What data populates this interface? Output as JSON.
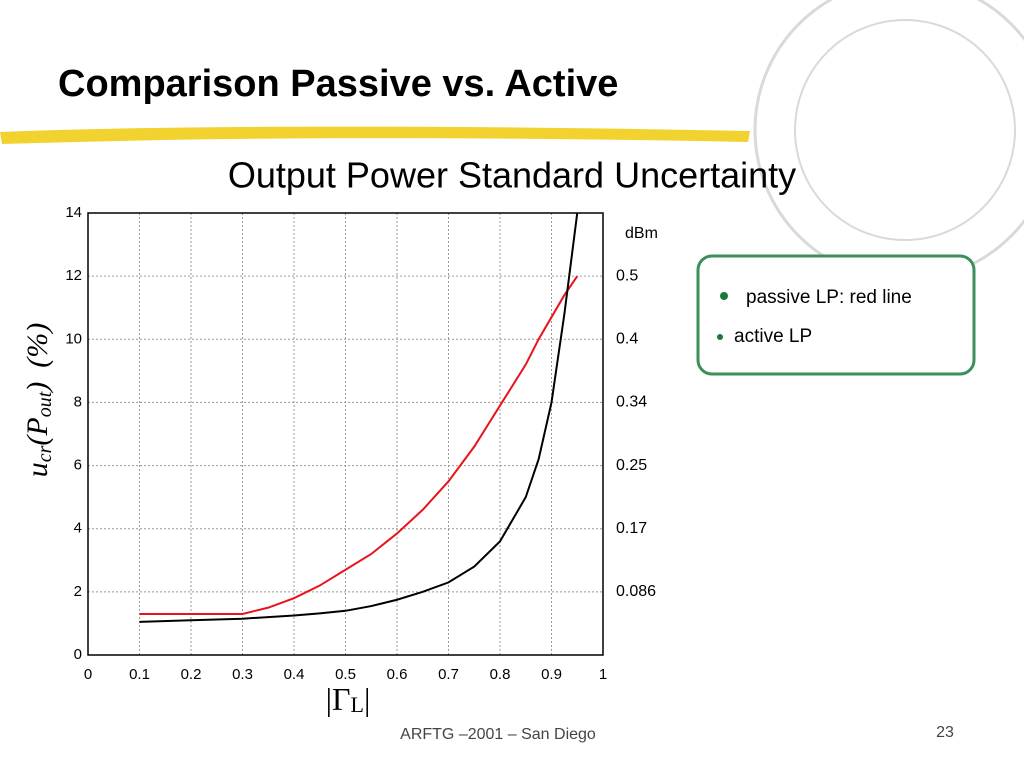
{
  "slide": {
    "title": "Comparison Passive vs. Active",
    "subtitle": "Output Power Standard Uncertainty",
    "footer": "ARFTG –2001 – San Diego",
    "page": "23"
  },
  "chart_data": {
    "type": "line",
    "ylabel": [
      "u",
      "cr",
      "(P",
      "out",
      ")",
      "(%)"
    ],
    "xlabel": [
      "|Γ",
      "L",
      "|"
    ],
    "x": [
      0.1,
      0.2,
      0.3,
      0.35,
      0.4,
      0.45,
      0.5,
      0.55,
      0.6,
      0.65,
      0.7,
      0.75,
      0.8,
      0.85,
      0.875,
      0.9,
      0.925,
      0.95
    ],
    "series": [
      {
        "name": "passive LP: red line",
        "color": "#e8141b",
        "values": [
          1.3,
          1.3,
          1.3,
          1.5,
          1.8,
          2.2,
          2.7,
          3.2,
          3.85,
          4.6,
          5.5,
          6.6,
          7.9,
          9.2,
          10.0,
          10.7,
          11.4,
          12.0
        ]
      },
      {
        "name": "active LP",
        "color": "#000000",
        "values": [
          1.05,
          1.1,
          1.15,
          1.2,
          1.25,
          1.32,
          1.4,
          1.55,
          1.75,
          2.0,
          2.3,
          2.8,
          3.6,
          5.0,
          6.2,
          8.0,
          10.8,
          14
        ]
      }
    ],
    "xlim": [
      0,
      1
    ],
    "ylim": [
      0,
      14
    ],
    "xticks": [
      0,
      0.1,
      0.2,
      0.3,
      0.4,
      0.5,
      0.6,
      0.7,
      0.8,
      0.9,
      1
    ],
    "yticks": [
      0,
      2,
      4,
      6,
      8,
      10,
      12,
      14
    ],
    "grid": true,
    "dbm": {
      "label": "dBm",
      "at": [
        12,
        10,
        8,
        6,
        4,
        2
      ],
      "labels": [
        0.5,
        0.4,
        0.34,
        0.25,
        0.17,
        0.086
      ]
    }
  }
}
